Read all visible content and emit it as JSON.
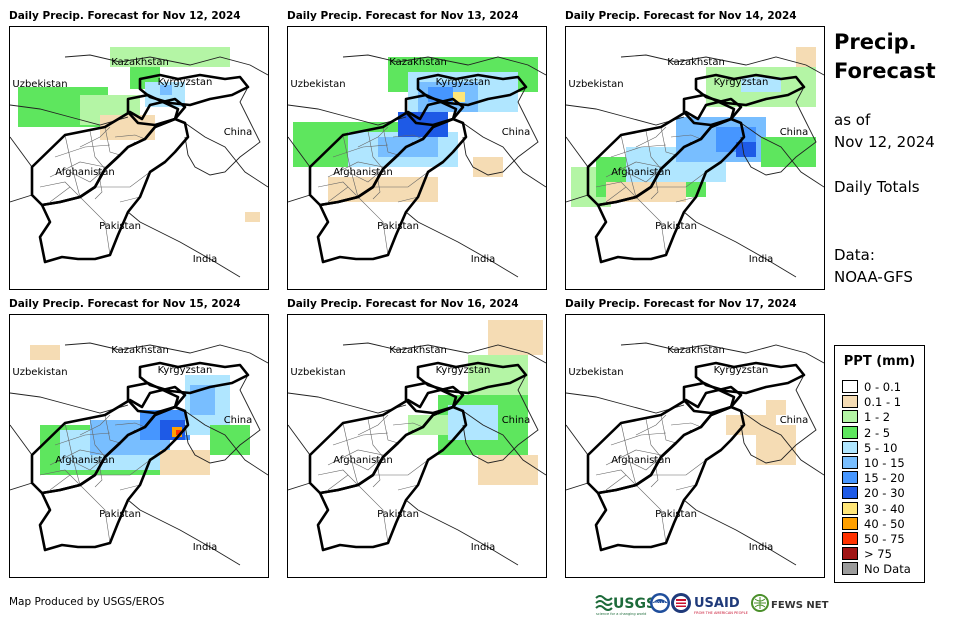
{
  "panels": [
    {
      "title": "Daily Precip. Forecast for Nov 12, 2024",
      "precip": [
        {
          "x": 8,
          "y": 60,
          "w": 90,
          "h": 40,
          "level": "2-5"
        },
        {
          "x": 70,
          "y": 68,
          "w": 60,
          "h": 30,
          "level": "1-2"
        },
        {
          "x": 100,
          "y": 20,
          "w": 120,
          "h": 20,
          "level": "1-2"
        },
        {
          "x": 120,
          "y": 40,
          "w": 30,
          "h": 22,
          "level": "2-5"
        },
        {
          "x": 135,
          "y": 55,
          "w": 40,
          "h": 25,
          "level": "5-10"
        },
        {
          "x": 150,
          "y": 58,
          "w": 12,
          "h": 10,
          "level": "10-15"
        },
        {
          "x": 90,
          "y": 88,
          "w": 55,
          "h": 25,
          "level": "0.1-1"
        },
        {
          "x": 235,
          "y": 185,
          "w": 15,
          "h": 10,
          "level": "0.1-1"
        }
      ]
    },
    {
      "title": "Daily Precip. Forecast for Nov 13, 2024",
      "precip": [
        {
          "x": 5,
          "y": 95,
          "w": 140,
          "h": 45,
          "level": "2-5"
        },
        {
          "x": 60,
          "y": 105,
          "w": 110,
          "h": 35,
          "level": "5-10"
        },
        {
          "x": 90,
          "y": 110,
          "w": 60,
          "h": 20,
          "level": "10-15"
        },
        {
          "x": 100,
          "y": 30,
          "w": 150,
          "h": 35,
          "level": "2-5"
        },
        {
          "x": 120,
          "y": 45,
          "w": 110,
          "h": 40,
          "level": "5-10"
        },
        {
          "x": 130,
          "y": 55,
          "w": 60,
          "h": 30,
          "level": "10-15"
        },
        {
          "x": 140,
          "y": 60,
          "w": 25,
          "h": 15,
          "level": "15-20"
        },
        {
          "x": 165,
          "y": 65,
          "w": 12,
          "h": 10,
          "level": "30-40"
        },
        {
          "x": 110,
          "y": 85,
          "w": 50,
          "h": 25,
          "level": "20-30"
        },
        {
          "x": 40,
          "y": 150,
          "w": 110,
          "h": 25,
          "level": "0.1-1"
        },
        {
          "x": 185,
          "y": 130,
          "w": 30,
          "h": 20,
          "level": "0.1-1"
        }
      ]
    },
    {
      "title": "Daily Precip. Forecast for Nov 14, 2024",
      "precip": [
        {
          "x": 5,
          "y": 140,
          "w": 40,
          "h": 40,
          "level": "1-2"
        },
        {
          "x": 30,
          "y": 130,
          "w": 110,
          "h": 40,
          "level": "2-5"
        },
        {
          "x": 60,
          "y": 120,
          "w": 100,
          "h": 35,
          "level": "5-10"
        },
        {
          "x": 110,
          "y": 90,
          "w": 90,
          "h": 45,
          "level": "10-15"
        },
        {
          "x": 150,
          "y": 100,
          "w": 40,
          "h": 25,
          "level": "15-20"
        },
        {
          "x": 170,
          "y": 115,
          "w": 20,
          "h": 15,
          "level": "20-30"
        },
        {
          "x": 195,
          "y": 110,
          "w": 55,
          "h": 30,
          "level": "2-5"
        },
        {
          "x": 140,
          "y": 40,
          "w": 110,
          "h": 40,
          "level": "1-2"
        },
        {
          "x": 175,
          "y": 50,
          "w": 40,
          "h": 15,
          "level": "5-10"
        },
        {
          "x": 40,
          "y": 155,
          "w": 80,
          "h": 20,
          "level": "0.1-1"
        },
        {
          "x": 230,
          "y": 20,
          "w": 20,
          "h": 20,
          "level": "0.1-1"
        }
      ]
    },
    {
      "title": "Daily Precip. Forecast for Nov 15, 2024",
      "precip": [
        {
          "x": 30,
          "y": 110,
          "w": 130,
          "h": 50,
          "level": "2-5"
        },
        {
          "x": 50,
          "y": 115,
          "w": 110,
          "h": 40,
          "level": "5-10"
        },
        {
          "x": 80,
          "y": 105,
          "w": 80,
          "h": 35,
          "level": "10-15"
        },
        {
          "x": 130,
          "y": 95,
          "w": 50,
          "h": 30,
          "level": "15-20"
        },
        {
          "x": 150,
          "y": 105,
          "w": 25,
          "h": 20,
          "level": "20-30"
        },
        {
          "x": 162,
          "y": 112,
          "w": 10,
          "h": 10,
          "level": "40-50"
        },
        {
          "x": 166,
          "y": 115,
          "w": 5,
          "h": 5,
          "level": "50-75"
        },
        {
          "x": 175,
          "y": 60,
          "w": 45,
          "h": 60,
          "level": "5-10"
        },
        {
          "x": 180,
          "y": 70,
          "w": 25,
          "h": 30,
          "level": "10-15"
        },
        {
          "x": 200,
          "y": 110,
          "w": 40,
          "h": 30,
          "level": "2-5"
        },
        {
          "x": 150,
          "y": 135,
          "w": 50,
          "h": 25,
          "level": "0.1-1"
        },
        {
          "x": 20,
          "y": 30,
          "w": 30,
          "h": 15,
          "level": "0.1-1"
        }
      ]
    },
    {
      "title": "Daily Precip. Forecast for Nov 16, 2024",
      "precip": [
        {
          "x": 150,
          "y": 80,
          "w": 90,
          "h": 60,
          "level": "2-5"
        },
        {
          "x": 160,
          "y": 90,
          "w": 50,
          "h": 35,
          "level": "5-10"
        },
        {
          "x": 180,
          "y": 40,
          "w": 60,
          "h": 40,
          "level": "1-2"
        },
        {
          "x": 200,
          "y": 5,
          "w": 55,
          "h": 35,
          "level": "0.1-1"
        },
        {
          "x": 120,
          "y": 100,
          "w": 40,
          "h": 20,
          "level": "1-2"
        },
        {
          "x": 190,
          "y": 140,
          "w": 60,
          "h": 30,
          "level": "0.1-1"
        }
      ]
    },
    {
      "title": "Daily Precip. Forecast for Nov 17, 2024",
      "precip": [
        {
          "x": 160,
          "y": 100,
          "w": 50,
          "h": 20,
          "level": "0.1-1"
        },
        {
          "x": 190,
          "y": 110,
          "w": 40,
          "h": 40,
          "level": "0.1-1"
        },
        {
          "x": 200,
          "y": 85,
          "w": 20,
          "h": 15,
          "level": "0.1-1"
        }
      ]
    }
  ],
  "map_labels": {
    "kazakhstan": "Kazakhstan",
    "kyrgyzstan": "Kyrgyzstan",
    "uzbekistan": "Uzbekistan",
    "china": "China",
    "afghanistan": "Afghanistan",
    "pakistan": "Pakistan",
    "india": "India"
  },
  "side": {
    "title_line1": "Precip.",
    "title_line2": "Forecast",
    "asof_line1": "as of",
    "asof_line2": "Nov 12, 2024",
    "totals": "Daily Totals",
    "data_line1": "Data:",
    "data_line2": "NOAA-GFS"
  },
  "legend": {
    "title": "PPT (mm)",
    "items": [
      {
        "label": "0 - 0.1",
        "color": "#ffffff"
      },
      {
        "label": "0.1 - 1",
        "color": "#f5dcb4"
      },
      {
        "label": "1 - 2",
        "color": "#b4f5a5"
      },
      {
        "label": "2 - 5",
        "color": "#5ee65e"
      },
      {
        "label": "5 - 10",
        "color": "#b0e6ff"
      },
      {
        "label": "10 - 15",
        "color": "#78beff"
      },
      {
        "label": "15 - 20",
        "color": "#4696ff"
      },
      {
        "label": "20 - 30",
        "color": "#1e5ae6"
      },
      {
        "label": "30 - 40",
        "color": "#ffe678"
      },
      {
        "label": "40 - 50",
        "color": "#ffa000"
      },
      {
        "label": "50 - 75",
        "color": "#ff3200"
      },
      {
        "label": "> 75",
        "color": "#a01414"
      },
      {
        "label": "No Data",
        "color": "#9b9b9b"
      }
    ]
  },
  "level_colors": {
    "0.1-1": "#f5dcb4",
    "1-2": "#b4f5a5",
    "2-5": "#5ee65e",
    "5-10": "#b0e6ff",
    "10-15": "#78beff",
    "15-20": "#4696ff",
    "20-30": "#1e5ae6",
    "30-40": "#ffe678",
    "40-50": "#ffa000",
    "50-75": "#ff3200",
    "gt75": "#a01414"
  },
  "credit": "Map Produced by USGS/EROS",
  "logos": {
    "usgs": "USGS",
    "usgs_tagline": "science for a changing world",
    "noaa": "NOAA",
    "usaid": "USAID",
    "usaid_tagline": "FROM THE AMERICAN PEOPLE",
    "fews": "FEWS NET"
  }
}
